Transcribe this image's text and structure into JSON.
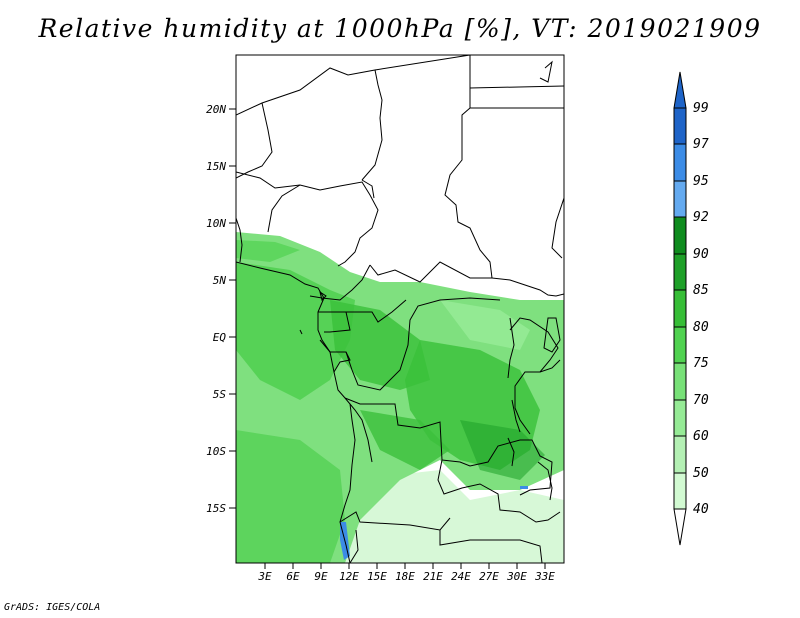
{
  "title": "Relative humidity at 1000hPa [%], VT: 2019021909",
  "credit": "GrADS: IGES/COLA",
  "map": {
    "lat_ticks": [
      "20N",
      "15N",
      "10N",
      "5N",
      "EQ",
      "5S",
      "10S",
      "15S"
    ],
    "lon_ticks": [
      "3E",
      "6E",
      "9E",
      "12E",
      "15E",
      "18E",
      "21E",
      "24E",
      "27E",
      "30E",
      "33E"
    ]
  },
  "colorbar": {
    "labels": [
      "99",
      "97",
      "95",
      "92",
      "90",
      "85",
      "80",
      "75",
      "70",
      "60",
      "50",
      "40"
    ],
    "colors": [
      "#1e64c8",
      "#3c8ce6",
      "#64aaf0",
      "#0f8c1e",
      "#1ea028",
      "#37be37",
      "#50d250",
      "#78e178",
      "#96eb96",
      "#b4f0b4",
      "#d2fad2",
      "#f0fff0"
    ]
  }
}
